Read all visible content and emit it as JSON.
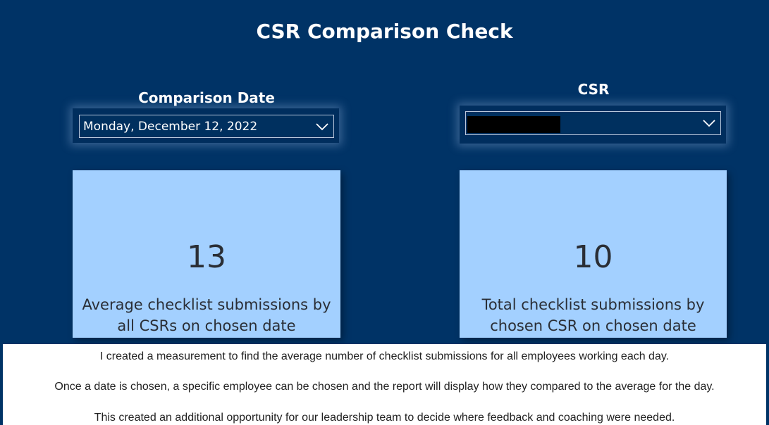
{
  "page": {
    "title": "CSR Comparison Check"
  },
  "date_slicer": {
    "label": "Comparison Date",
    "selected": "Monday, December 12, 2022"
  },
  "csr_slicer": {
    "label": "CSR",
    "selected": ""
  },
  "cards": [
    {
      "value": "13",
      "label": "Average checklist submissions by all CSRs on chosen date"
    },
    {
      "value": "10",
      "label": "Total checklist submissions by chosen CSR on chosen date"
    }
  ],
  "notes": [
    "I created a measurement to find the average number of checklist submissions for all employees working each day.",
    "Once a date is chosen, a specific employee can be chosen and the report will display how they compared to the average for the day.",
    "This created an additional opportunity for our leadership team to decide where feedback and coaching were needed."
  ],
  "colors": {
    "background": "#003366",
    "card": "#a3d0ff",
    "text_light": "#ffffff"
  }
}
